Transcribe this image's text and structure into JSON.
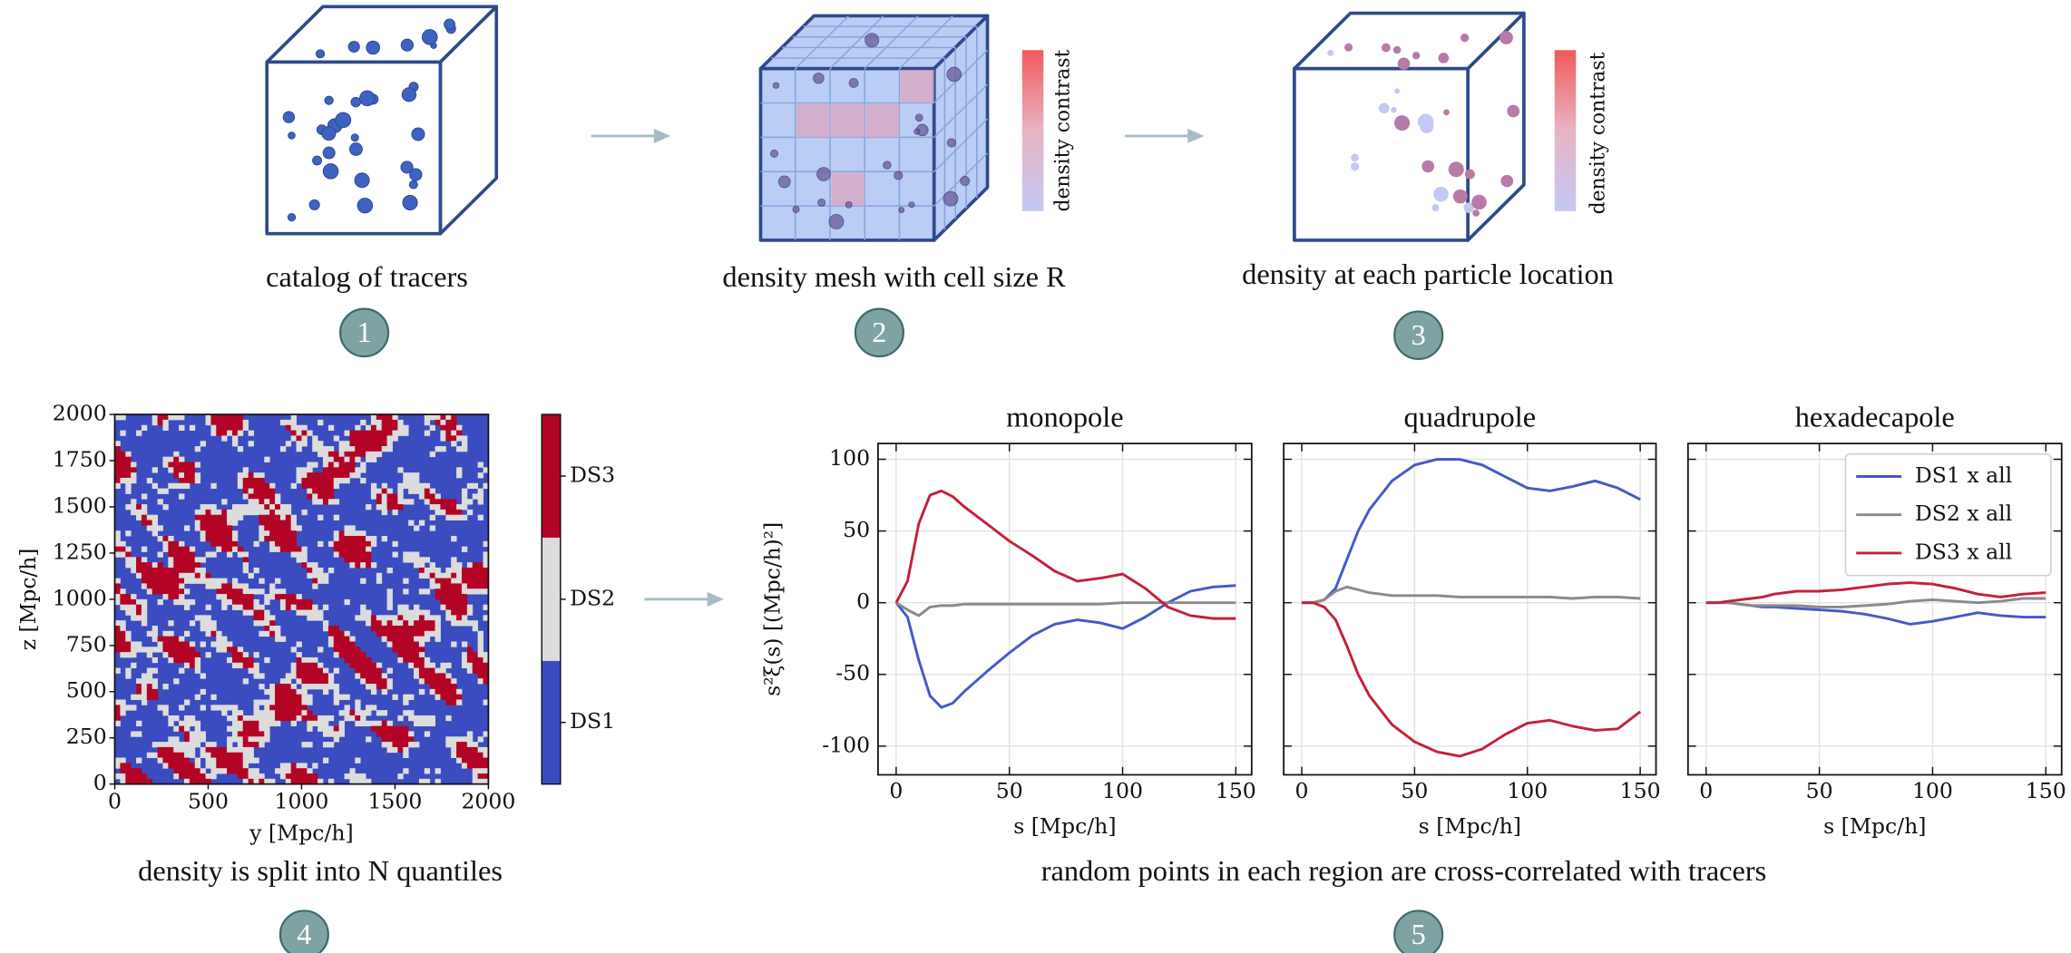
{
  "steps": [
    {
      "number": "1",
      "caption": "catalog of tracers"
    },
    {
      "number": "2",
      "caption": "density mesh with cell size R"
    },
    {
      "number": "3",
      "caption": "density at each particle location"
    },
    {
      "number": "4",
      "caption": "density is split into N quantiles"
    },
    {
      "number": "5",
      "caption": "random points in each region are cross-correlated with tracers"
    }
  ],
  "colorbar_label": "density contrast",
  "chart_data": [
    {
      "type": "heatmap",
      "xlabel": "y [Mpc/h]",
      "ylabel": "z [Mpc/h]",
      "xlim": [
        0,
        2000
      ],
      "xticks": [
        0,
        500,
        1000,
        1500,
        2000
      ],
      "ylim": [
        0,
        2000
      ],
      "yticks": [
        0,
        250,
        500,
        750,
        1000,
        1250,
        1500,
        1750,
        2000
      ],
      "colorbar": [
        {
          "name": "DS1",
          "color": "#3b4cc0"
        },
        {
          "name": "DS2",
          "color": "#dcdcdc"
        },
        {
          "name": "DS3",
          "color": "#b40426"
        }
      ]
    },
    {
      "type": "line",
      "title": "monopole",
      "xlabel": "s [Mpc/h]",
      "ylabel": "s²ξ(s) [(Mpc/h)²]",
      "grid": true,
      "xlim": [
        -8,
        157
      ],
      "xticks": [
        0,
        50,
        100,
        150
      ],
      "ylim": [
        -120,
        111
      ],
      "yticks": [
        -100,
        -50,
        0,
        50,
        100
      ],
      "x": [
        0,
        5,
        10,
        15,
        20,
        25,
        30,
        40,
        50,
        60,
        70,
        80,
        90,
        100,
        110,
        120,
        130,
        140,
        150
      ],
      "series": [
        {
          "name": "DS1 x all",
          "color": "#4558c8",
          "values": [
            0,
            -10,
            -40,
            -65,
            -73,
            -70,
            -62,
            -48,
            -35,
            -23,
            -15,
            -12,
            -14,
            -18,
            -10,
            0,
            8,
            11,
            12
          ]
        },
        {
          "name": "DS2 x all",
          "color": "#8a8a8a",
          "values": [
            0,
            -5,
            -9,
            -3,
            -2,
            -2,
            -1,
            -1,
            -1,
            -1,
            -1,
            -1,
            -1,
            0,
            0,
            0,
            0,
            0,
            0
          ]
        },
        {
          "name": "DS3 x all",
          "color": "#c4203a",
          "values": [
            0,
            15,
            55,
            75,
            78,
            74,
            67,
            55,
            43,
            33,
            22,
            15,
            17,
            20,
            10,
            -3,
            -9,
            -11,
            -11
          ]
        }
      ]
    },
    {
      "type": "line",
      "title": "quadrupole",
      "xlabel": "s [Mpc/h]",
      "grid": true,
      "xlim": [
        -8,
        157
      ],
      "xticks": [
        0,
        50,
        100,
        150
      ],
      "ylim": [
        -120,
        111
      ],
      "yticks": [
        -100,
        -50,
        0,
        50,
        100
      ],
      "x": [
        0,
        5,
        10,
        15,
        20,
        25,
        30,
        40,
        50,
        60,
        70,
        80,
        90,
        100,
        110,
        120,
        130,
        140,
        150
      ],
      "series": [
        {
          "name": "DS1 x all",
          "color": "#4558c8",
          "values": [
            0,
            0,
            2,
            10,
            30,
            50,
            65,
            85,
            96,
            100,
            100,
            96,
            88,
            80,
            78,
            81,
            85,
            80,
            72
          ]
        },
        {
          "name": "DS2 x all",
          "color": "#8a8a8a",
          "values": [
            0,
            0,
            2,
            8,
            11,
            9,
            7,
            5,
            5,
            5,
            4,
            4,
            4,
            4,
            4,
            3,
            4,
            4,
            3
          ]
        },
        {
          "name": "DS3 x all",
          "color": "#c4203a",
          "values": [
            0,
            0,
            -3,
            -12,
            -30,
            -50,
            -65,
            -85,
            -97,
            -104,
            -107,
            -102,
            -92,
            -84,
            -82,
            -86,
            -89,
            -88,
            -76
          ]
        }
      ]
    },
    {
      "type": "line",
      "title": "hexadecapole",
      "xlabel": "s [Mpc/h]",
      "grid": true,
      "legend": "upper right",
      "xlim": [
        -8,
        157
      ],
      "xticks": [
        0,
        50,
        100,
        150
      ],
      "ylim": [
        -120,
        111
      ],
      "yticks": [
        -100,
        -50,
        0,
        50,
        100
      ],
      "x": [
        0,
        5,
        10,
        15,
        20,
        25,
        30,
        40,
        50,
        60,
        70,
        80,
        90,
        100,
        110,
        120,
        130,
        140,
        150
      ],
      "series": [
        {
          "name": "DS1 x all",
          "color": "#4558c8",
          "values": [
            0,
            0,
            0,
            -1,
            -2,
            -3,
            -3,
            -4,
            -5,
            -6,
            -8,
            -11,
            -15,
            -13,
            -10,
            -7,
            -9,
            -10,
            -10
          ]
        },
        {
          "name": "DS2 x all",
          "color": "#8a8a8a",
          "values": [
            0,
            0,
            0,
            -1,
            -2,
            -2,
            -2,
            -2,
            -3,
            -3,
            -2,
            -1,
            1,
            2,
            1,
            0,
            1,
            3,
            3
          ]
        },
        {
          "name": "DS3 x all",
          "color": "#c4203a",
          "values": [
            0,
            0,
            1,
            2,
            3,
            4,
            6,
            8,
            8,
            9,
            11,
            13,
            14,
            13,
            10,
            6,
            4,
            6,
            7
          ]
        }
      ]
    }
  ]
}
